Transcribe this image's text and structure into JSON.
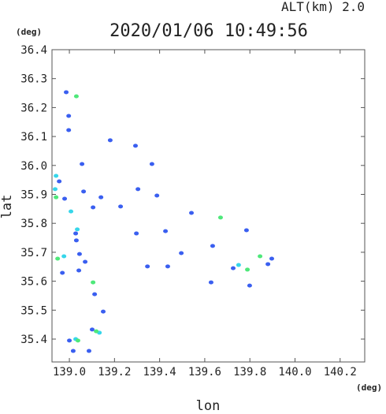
{
  "chart_data": {
    "type": "scatter",
    "header": "ALT(km) 2.0",
    "title": "2020/01/06 10:49:56",
    "y_unit": "(deg)",
    "x_unit": "(deg)",
    "ylabel": "lat",
    "xlabel": "lon",
    "xlim": [
      138.923,
      140.309
    ],
    "ylim": [
      35.321,
      36.4
    ],
    "xticks": [
      {
        "value": 139.0,
        "label": "139.0"
      },
      139.2,
      139.4,
      139.6,
      139.8,
      {
        "value": 140.0,
        "label": "140.0"
      },
      140.2
    ],
    "yticks": [
      35.4,
      35.5,
      35.6,
      35.7,
      35.8,
      35.9,
      {
        "value": 36.0,
        "label": "36.0"
      },
      36.1,
      36.2,
      36.3,
      36.4
    ],
    "series": [
      {
        "color": "#3a5ff0",
        "x": [
          138.986,
          138.997,
          138.997,
          139.056,
          138.955,
          139.063,
          138.979,
          139.105,
          139.14,
          139.227,
          139.304,
          139.388,
          139.541,
          139.028,
          139.031,
          139.045,
          139.07,
          138.969,
          139.112,
          139.15,
          139.101,
          139.0,
          139.017,
          139.087,
          139.297,
          139.426,
          139.436,
          139.496,
          139.635,
          139.628,
          139.785,
          139.88,
          139.897,
          139.799,
          139.366,
          139.293,
          139.181,
          139.726,
          139.042,
          139.346
        ],
        "y": [
          36.253,
          36.171,
          36.122,
          36.005,
          35.945,
          35.91,
          35.885,
          35.855,
          35.89,
          35.858,
          35.918,
          35.896,
          35.836,
          35.765,
          35.741,
          35.694,
          35.667,
          35.629,
          35.555,
          35.495,
          35.433,
          35.395,
          35.359,
          35.359,
          35.765,
          35.773,
          35.651,
          35.697,
          35.722,
          35.596,
          35.776,
          35.659,
          35.678,
          35.585,
          36.005,
          36.068,
          36.087,
          35.645,
          35.637,
          35.651
        ]
      },
      {
        "color": "#36d6ea",
        "x": [
          138.941,
          138.937,
          139.035,
          139.007,
          138.976,
          139.75,
          139.028,
          139.133
        ],
        "y": [
          35.964,
          35.918,
          35.779,
          35.841,
          35.686,
          35.656,
          35.4,
          35.422
        ]
      },
      {
        "color": "#4ee87a",
        "x": [
          139.031,
          138.941,
          138.948,
          139.67,
          139.789,
          139.845,
          139.119,
          139.105,
          139.038
        ],
        "y": [
          36.239,
          35.89,
          35.678,
          35.82,
          35.64,
          35.686,
          35.427,
          35.596,
          35.395
        ]
      }
    ]
  }
}
